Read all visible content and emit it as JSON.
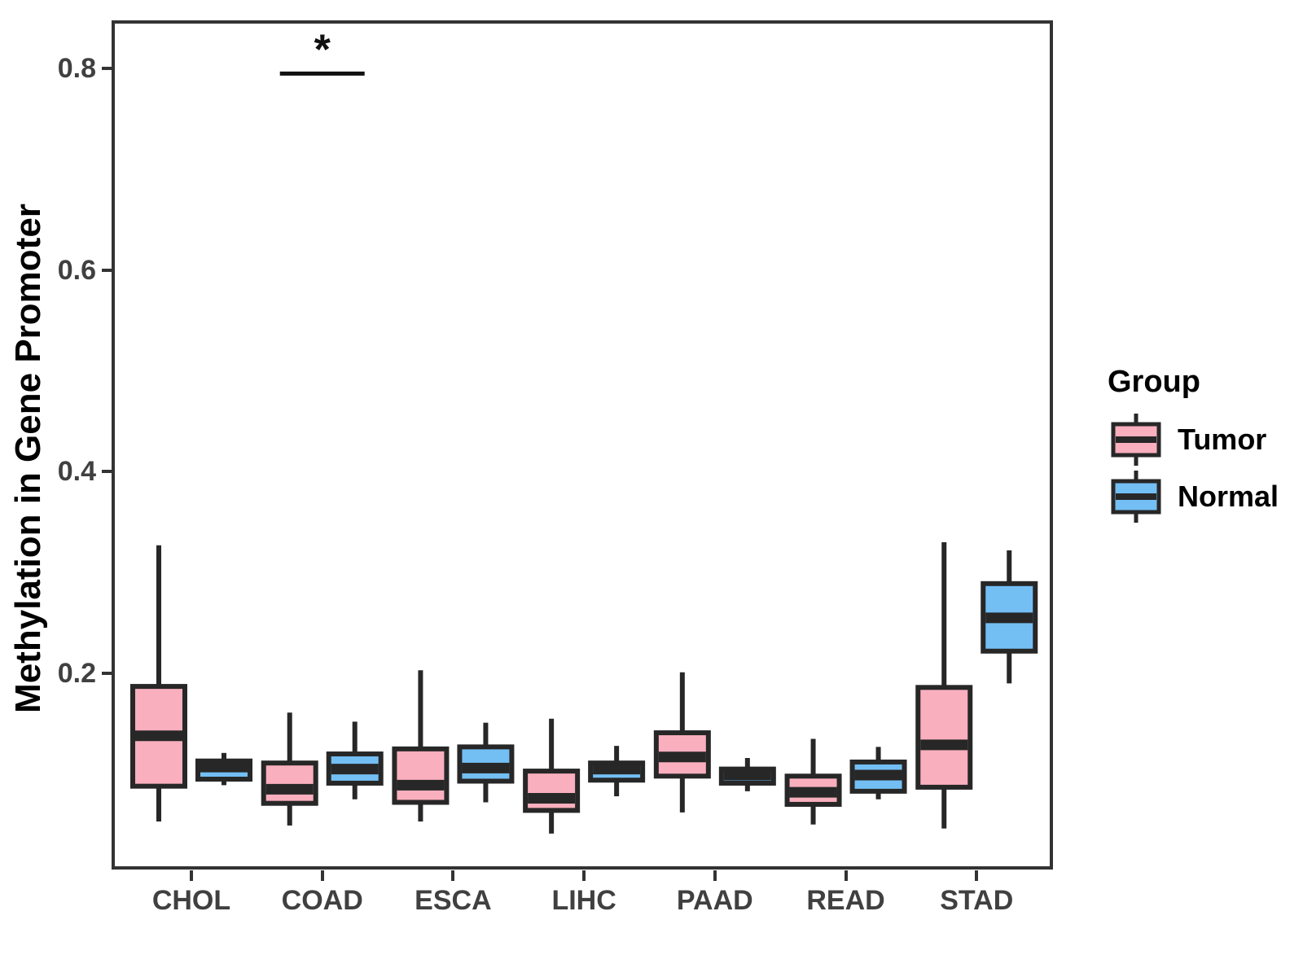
{
  "chart_data": {
    "type": "grouped_boxplot",
    "title": "",
    "xlabel": "",
    "ylabel": "Methylation in Gene Promoter",
    "categories": [
      "CHOL",
      "COAD",
      "ESCA",
      "LIHC",
      "PAAD",
      "READ",
      "STAD"
    ],
    "y_ticks": [
      0.2,
      0.4,
      0.6,
      0.8
    ],
    "y_tick_labels": [
      "0.2",
      "0.4",
      "0.6",
      "0.8"
    ],
    "ylim": [
      0.0,
      0.85
    ],
    "grid": "off",
    "legend": {
      "title": "Group",
      "position": "right",
      "entries": [
        "Tumor",
        "Normal"
      ]
    },
    "series": [
      {
        "name": "Tumor",
        "color": "#F9AFBE",
        "boxes": [
          {
            "category": "CHOL",
            "whisker_low": 0.053,
            "q1": 0.088,
            "median": 0.138,
            "q3": 0.187,
            "whisker_high": 0.327
          },
          {
            "category": "COAD",
            "whisker_low": 0.049,
            "q1": 0.071,
            "median": 0.085,
            "q3": 0.111,
            "whisker_high": 0.161
          },
          {
            "category": "ESCA",
            "whisker_low": 0.053,
            "q1": 0.072,
            "median": 0.089,
            "q3": 0.125,
            "whisker_high": 0.203
          },
          {
            "category": "LIHC",
            "whisker_low": 0.041,
            "q1": 0.064,
            "median": 0.076,
            "q3": 0.103,
            "whisker_high": 0.155
          },
          {
            "category": "PAAD",
            "whisker_low": 0.062,
            "q1": 0.098,
            "median": 0.117,
            "q3": 0.141,
            "whisker_high": 0.201
          },
          {
            "category": "READ",
            "whisker_low": 0.05,
            "q1": 0.07,
            "median": 0.082,
            "q3": 0.098,
            "whisker_high": 0.135
          },
          {
            "category": "STAD",
            "whisker_low": 0.046,
            "q1": 0.087,
            "median": 0.129,
            "q3": 0.186,
            "whisker_high": 0.33
          }
        ]
      },
      {
        "name": "Normal",
        "color": "#73BFF4",
        "boxes": [
          {
            "category": "CHOL",
            "whisker_low": 0.089,
            "q1": 0.095,
            "median": 0.107,
            "q3": 0.113,
            "whisker_high": 0.121
          },
          {
            "category": "COAD",
            "whisker_low": 0.075,
            "q1": 0.091,
            "median": 0.105,
            "q3": 0.12,
            "whisker_high": 0.152
          },
          {
            "category": "ESCA",
            "whisker_low": 0.072,
            "q1": 0.093,
            "median": 0.106,
            "q3": 0.127,
            "whisker_high": 0.151
          },
          {
            "category": "LIHC",
            "whisker_low": 0.078,
            "q1": 0.094,
            "median": 0.105,
            "q3": 0.111,
            "whisker_high": 0.128
          },
          {
            "category": "PAAD",
            "whisker_low": 0.083,
            "q1": 0.091,
            "median": 0.099,
            "q3": 0.105,
            "whisker_high": 0.116
          },
          {
            "category": "READ",
            "whisker_low": 0.075,
            "q1": 0.083,
            "median": 0.099,
            "q3": 0.112,
            "whisker_high": 0.127
          },
          {
            "category": "STAD",
            "whisker_low": 0.19,
            "q1": 0.222,
            "median": 0.255,
            "q3": 0.289,
            "whisker_high": 0.322
          }
        ]
      }
    ],
    "annotations": [
      {
        "type": "significance-bar",
        "category": "COAD",
        "label": "*",
        "y": 0.795
      }
    ],
    "colors": {
      "stroke": "#272727",
      "panel_border": "#333333",
      "tick_text": "#404040",
      "annotation": "#111111"
    }
  }
}
